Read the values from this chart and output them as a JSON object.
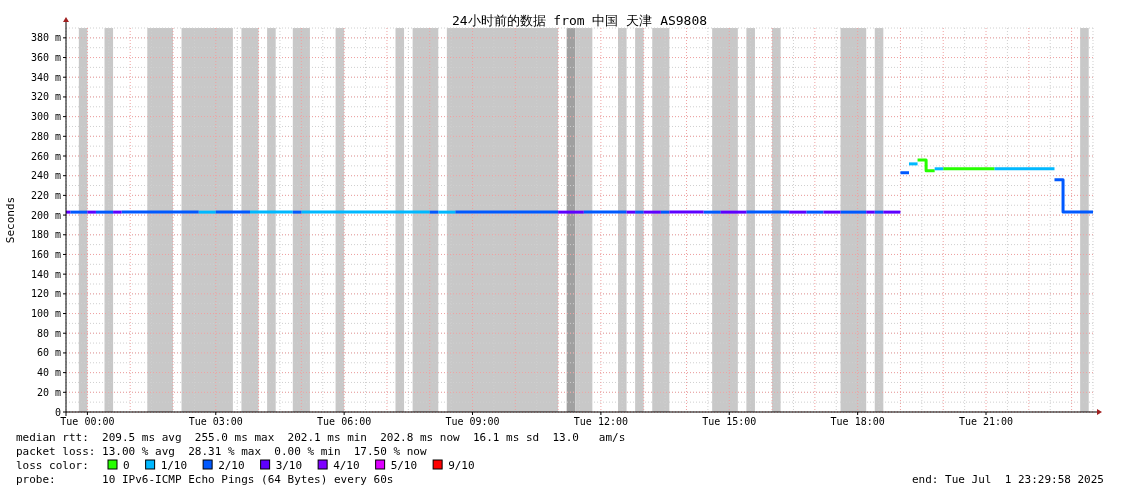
{
  "chart_data": {
    "type": "line",
    "title": "24小时前的数据 from 中国 天津 AS9808",
    "ylabel": "Seconds",
    "series": [
      {
        "name": "0",
        "color": "#26ff00",
        "x": [
          "2025-07-01T19:24",
          "2025-07-01T19:36",
          "2025-07-01T19:36",
          "2025-07-01T19:48"
        ],
        "values": [
          256,
          256,
          245,
          245
        ]
      },
      {
        "name": "1/10",
        "color": "#00b8ff",
        "x": [
          "2025-07-01T02:36",
          "2025-07-01T03:00"
        ],
        "values": [
          203,
          203
        ]
      },
      {
        "name": "2/10",
        "color": "#0059ff",
        "x": [
          "2025-06-30T23:36",
          "2025-07-01T00:00"
        ],
        "values": [
          203,
          203
        ]
      },
      {
        "name": "3/10",
        "color": "#5e00ff",
        "x": [
          "2025-06-30T23:30",
          "2025-06-30T23:36"
        ],
        "values": [
          203,
          203
        ]
      },
      {
        "name": "4/10",
        "color": "#7e00ff"
      },
      {
        "name": "5/10",
        "color": "#dd00ff"
      },
      {
        "name": "9/10",
        "color": "#ff0000"
      },
      {
        "color": "#26ff00",
        "x": [
          "2025-07-01T20:00",
          "2025-07-01T21:12"
        ],
        "values": [
          247,
          247
        ]
      },
      {
        "color": "#00b8ff",
        "x": [
          "2025-07-01T03:48",
          "2025-07-01T04:48"
        ],
        "values": [
          203,
          203
        ]
      },
      {
        "color": "#00b8ff",
        "x": [
          "2025-07-01T05:00",
          "2025-07-01T08:00"
        ],
        "values": [
          203,
          203
        ]
      },
      {
        "color": "#00b8ff",
        "x": [
          "2025-07-01T08:12",
          "2025-07-01T08:36"
        ],
        "values": [
          203,
          203
        ]
      },
      {
        "color": "#00b8ff",
        "x": [
          "2025-07-01T19:12",
          "2025-07-01T19:24"
        ],
        "values": [
          252,
          252
        ]
      },
      {
        "color": "#00b8ff",
        "x": [
          "2025-07-01T19:48",
          "2025-07-01T20:00"
        ],
        "values": [
          247,
          247
        ]
      },
      {
        "color": "#00b8ff",
        "x": [
          "2025-07-01T21:12",
          "2025-07-01T22:36"
        ],
        "values": [
          247,
          247
        ]
      },
      {
        "color": "#0059ff",
        "x": [
          "2025-07-01T00:12",
          "2025-07-01T00:36"
        ],
        "values": [
          203,
          203
        ]
      },
      {
        "color": "#0059ff",
        "x": [
          "2025-07-01T00:48",
          "2025-07-01T02:36"
        ],
        "values": [
          203,
          203
        ]
      },
      {
        "color": "#0059ff",
        "x": [
          "2025-07-01T03:00",
          "2025-07-01T03:48"
        ],
        "values": [
          203,
          203
        ]
      },
      {
        "color": "#0059ff",
        "x": [
          "2025-07-01T04:48",
          "2025-07-01T05:00"
        ],
        "values": [
          203,
          203
        ]
      },
      {
        "color": "#0059ff",
        "x": [
          "2025-07-01T08:00",
          "2025-07-01T08:12"
        ],
        "values": [
          203,
          203
        ]
      },
      {
        "color": "#0059ff",
        "x": [
          "2025-07-01T08:36",
          "2025-07-01T11:00"
        ],
        "values": [
          203,
          203
        ]
      },
      {
        "color": "#0059ff",
        "x": [
          "2025-07-01T11:36",
          "2025-07-01T12:36"
        ],
        "values": [
          203,
          203
        ]
      },
      {
        "color": "#0059ff",
        "x": [
          "2025-07-01T12:48",
          "2025-07-01T13:00"
        ],
        "values": [
          203,
          203
        ]
      },
      {
        "color": "#0059ff",
        "x": [
          "2025-07-01T13:24",
          "2025-07-01T13:36"
        ],
        "values": [
          203,
          203
        ]
      },
      {
        "color": "#0059ff",
        "x": [
          "2025-07-01T14:24",
          "2025-07-01T14:48"
        ],
        "values": [
          203,
          203
        ]
      },
      {
        "color": "#0059ff",
        "x": [
          "2025-07-01T15:24",
          "2025-07-01T16:24"
        ],
        "values": [
          203,
          203
        ]
      },
      {
        "color": "#0059ff",
        "x": [
          "2025-07-01T16:48",
          "2025-07-01T17:12"
        ],
        "values": [
          203,
          203
        ]
      },
      {
        "color": "#0059ff",
        "x": [
          "2025-07-01T17:36",
          "2025-07-01T18:12"
        ],
        "values": [
          203,
          203
        ]
      },
      {
        "color": "#0059ff",
        "x": [
          "2025-07-01T18:24",
          "2025-07-01T18:36"
        ],
        "values": [
          203,
          203
        ]
      },
      {
        "color": "#0059ff",
        "x": [
          "2025-07-01T19:00",
          "2025-07-01T19:12"
        ],
        "values": [
          243,
          243
        ]
      },
      {
        "color": "#0059ff",
        "x": [
          "2025-07-01T22:36",
          "2025-07-01T22:48",
          "2025-07-01T22:48",
          "2025-07-01T23:30"
        ],
        "values": [
          236,
          236,
          203,
          203
        ]
      },
      {
        "color": "#5e00ff",
        "x": [
          "2025-07-01T00:00",
          "2025-07-01T00:12"
        ],
        "values": [
          203,
          203
        ]
      },
      {
        "color": "#5e00ff",
        "x": [
          "2025-07-01T00:36",
          "2025-07-01T00:48"
        ],
        "values": [
          203,
          203
        ]
      },
      {
        "color": "#5e00ff",
        "x": [
          "2025-07-01T11:00",
          "2025-07-01T11:36"
        ],
        "values": [
          203,
          203
        ]
      },
      {
        "color": "#5e00ff",
        "x": [
          "2025-07-01T12:36",
          "2025-07-01T12:48"
        ],
        "values": [
          203,
          203
        ]
      },
      {
        "color": "#5e00ff",
        "x": [
          "2025-07-01T13:00",
          "2025-07-01T13:24"
        ],
        "values": [
          203,
          203
        ]
      },
      {
        "color": "#5e00ff",
        "x": [
          "2025-07-01T13:36",
          "2025-07-01T14:24"
        ],
        "values": [
          203,
          203
        ]
      },
      {
        "color": "#5e00ff",
        "x": [
          "2025-07-01T14:48",
          "2025-07-01T15:24"
        ],
        "values": [
          203,
          203
        ]
      },
      {
        "color": "#5e00ff",
        "x": [
          "2025-07-01T16:24",
          "2025-07-01T16:48"
        ],
        "values": [
          203,
          203
        ]
      },
      {
        "color": "#5e00ff",
        "x": [
          "2025-07-01T17:12",
          "2025-07-01T17:36"
        ],
        "values": [
          203,
          203
        ]
      },
      {
        "color": "#5e00ff",
        "x": [
          "2025-07-01T18:12",
          "2025-07-01T18:24"
        ],
        "values": [
          203,
          203
        ]
      },
      {
        "color": "#5e00ff",
        "x": [
          "2025-07-01T18:36",
          "2025-07-01T19:00"
        ],
        "values": [
          203,
          203
        ]
      }
    ],
    "xlim": [
      "2025-06-30T23:30",
      "2025-07-01T23:30"
    ],
    "ylim": [
      0,
      390
    ],
    "xticks": [
      {
        "value": "2025-07-01T00:00",
        "label": "Tue 00:00"
      },
      {
        "value": "2025-07-01T03:00",
        "label": "Tue 03:00"
      },
      {
        "value": "2025-07-01T06:00",
        "label": "Tue 06:00"
      },
      {
        "value": "2025-07-01T09:00",
        "label": "Tue 09:00"
      },
      {
        "value": "2025-07-01T12:00",
        "label": "Tue 12:00"
      },
      {
        "value": "2025-07-01T15:00",
        "label": "Tue 15:00"
      },
      {
        "value": "2025-07-01T18:00",
        "label": "Tue 18:00"
      },
      {
        "value": "2025-07-01T21:00",
        "label": "Tue 21:00"
      }
    ],
    "yticks": [
      0,
      {
        "value": 20,
        "label": "20 m"
      },
      {
        "value": 40,
        "label": "40 m"
      },
      {
        "value": 60,
        "label": "60 m"
      },
      {
        "value": 80,
        "label": "80 m"
      },
      {
        "value": 100,
        "label": "100 m"
      },
      {
        "value": 120,
        "label": "120 m"
      },
      {
        "value": 140,
        "label": "140 m"
      },
      {
        "value": 160,
        "label": "160 m"
      },
      {
        "value": 180,
        "label": "180 m"
      },
      {
        "value": 200,
        "label": "200 m"
      },
      {
        "value": 220,
        "label": "220 m"
      },
      {
        "value": 240,
        "label": "240 m"
      },
      {
        "value": 260,
        "label": "260 m"
      },
      {
        "value": 280,
        "label": "280 m"
      },
      {
        "value": 300,
        "label": "300 m"
      },
      {
        "value": 320,
        "label": "320 m"
      },
      {
        "value": 340,
        "label": "340 m"
      },
      {
        "value": 360,
        "label": "360 m"
      },
      {
        "value": 380,
        "label": "380 m"
      }
    ],
    "grid": true,
    "legend": "bottom",
    "legend_title": "loss color:",
    "bands": [
      {
        "axis": "x",
        "from": "2025-06-30T23:48",
        "to": "2025-07-01T00:00",
        "color": "#c8c8c8"
      },
      {
        "axis": "x",
        "from": "2025-07-01T00:24",
        "to": "2025-07-01T00:36",
        "color": "#c8c8c8"
      },
      {
        "axis": "x",
        "from": "2025-07-01T01:24",
        "to": "2025-07-01T02:00",
        "color": "#c8c8c8"
      },
      {
        "axis": "x",
        "from": "2025-07-01T02:12",
        "to": "2025-07-01T03:24",
        "color": "#c8c8c8"
      },
      {
        "axis": "x",
        "from": "2025-07-01T03:36",
        "to": "2025-07-01T04:00",
        "color": "#c8c8c8"
      },
      {
        "axis": "x",
        "from": "2025-07-01T04:12",
        "to": "2025-07-01T04:24",
        "color": "#c8c8c8"
      },
      {
        "axis": "x",
        "from": "2025-07-01T04:48",
        "to": "2025-07-01T05:12",
        "color": "#c8c8c8"
      },
      {
        "axis": "x",
        "from": "2025-07-01T05:48",
        "to": "2025-07-01T06:00",
        "color": "#c8c8c8"
      },
      {
        "axis": "x",
        "from": "2025-07-01T07:12",
        "to": "2025-07-01T07:24",
        "color": "#c8c8c8"
      },
      {
        "axis": "x",
        "from": "2025-07-01T07:36",
        "to": "2025-07-01T08:12",
        "color": "#c8c8c8"
      },
      {
        "axis": "x",
        "from": "2025-07-01T08:24",
        "to": "2025-07-01T11:00",
        "color": "#c8c8c8"
      },
      {
        "axis": "x",
        "from": "2025-07-01T11:12",
        "to": "2025-07-01T11:24",
        "color": "#a0a0a0"
      },
      {
        "axis": "x",
        "from": "2025-07-01T11:24",
        "to": "2025-07-01T11:48",
        "color": "#c8c8c8"
      },
      {
        "axis": "x",
        "from": "2025-07-01T12:24",
        "to": "2025-07-01T12:36",
        "color": "#c8c8c8"
      },
      {
        "axis": "x",
        "from": "2025-07-01T12:48",
        "to": "2025-07-01T13:00",
        "color": "#c8c8c8"
      },
      {
        "axis": "x",
        "from": "2025-07-01T13:12",
        "to": "2025-07-01T13:36",
        "color": "#c8c8c8"
      },
      {
        "axis": "x",
        "from": "2025-07-01T14:36",
        "to": "2025-07-01T15:12",
        "color": "#c8c8c8"
      },
      {
        "axis": "x",
        "from": "2025-07-01T15:24",
        "to": "2025-07-01T15:36",
        "color": "#c8c8c8"
      },
      {
        "axis": "x",
        "from": "2025-07-01T16:00",
        "to": "2025-07-01T16:12",
        "color": "#c8c8c8"
      },
      {
        "axis": "x",
        "from": "2025-07-01T17:36",
        "to": "2025-07-01T18:12",
        "color": "#c8c8c8"
      },
      {
        "axis": "x",
        "from": "2025-07-01T18:24",
        "to": "2025-07-01T18:36",
        "color": "#c8c8c8"
      },
      {
        "axis": "x",
        "from": "2025-07-01T23:12",
        "to": "2025-07-01T23:24",
        "color": "#c8c8c8"
      }
    ],
    "annotations": [
      "median rtt:  209.5 ms avg  255.0 ms max  202.1 ms min  202.8 ms now  16.1 ms sd  13.0   am/s",
      "packet loss: 13.00 % avg  28.31 % max  0.00 % min  17.50 % now",
      "probe:       10 IPv6-ICMP Echo Pings (64 Bytes) every 60s",
      "end: Tue Jul  1 23:29:58 2025"
    ]
  }
}
